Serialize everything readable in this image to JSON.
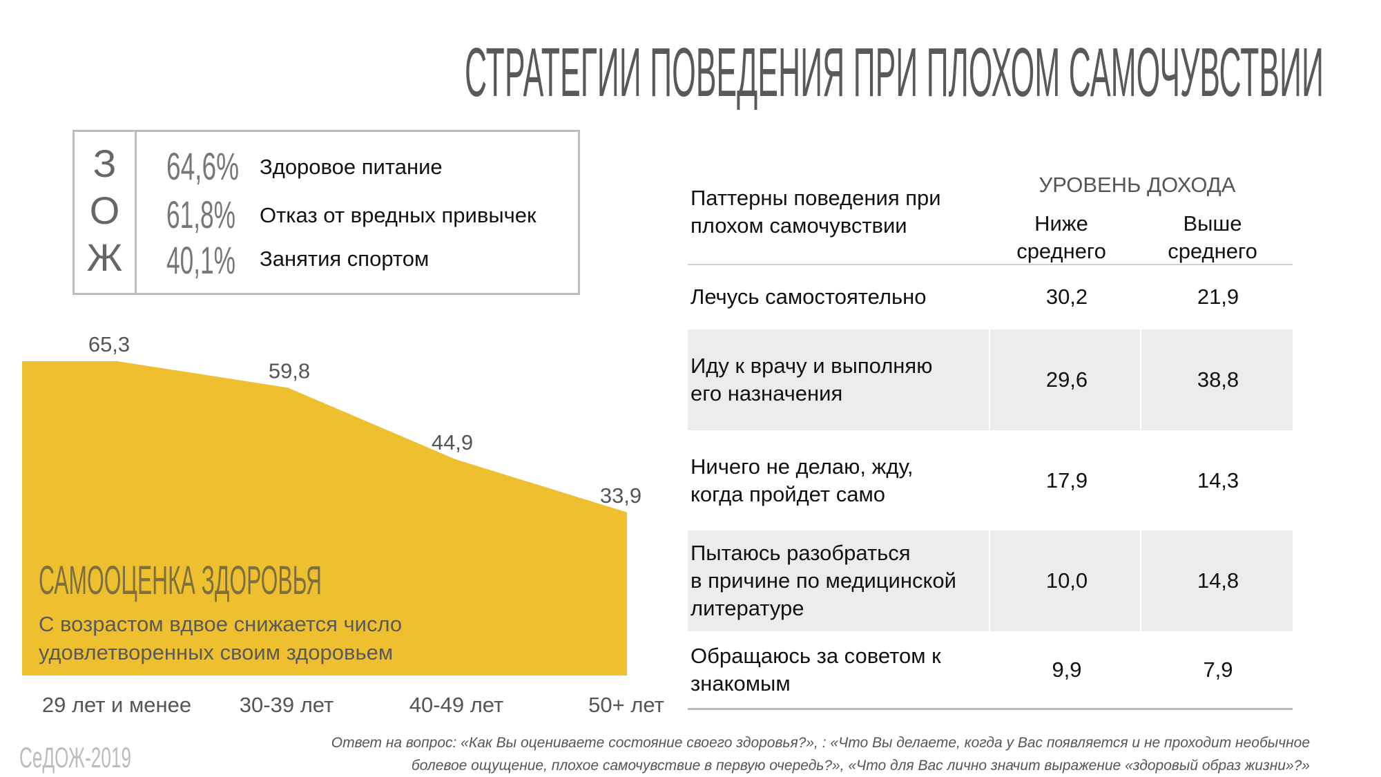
{
  "title": "СТРАТЕГИИ ПОВЕДЕНИЯ ПРИ ПЛОХОМ САМОЧУВСТВИИ",
  "zoj": {
    "letters": [
      "З",
      "О",
      "Ж"
    ],
    "items": [
      {
        "percent": "64,6%",
        "label": "Здоровое питание"
      },
      {
        "percent": "61,8%",
        "label": "Отказ от вредных привычек"
      },
      {
        "percent": "40,1%",
        "label": "Занятия спортом"
      }
    ]
  },
  "chart_data": {
    "type": "area",
    "title": "САМООЦЕНКА ЗДОРОВЬЯ",
    "subtitle": [
      "С возрастом вдвое снижается число",
      "удовлетворенных своим здоровьем"
    ],
    "categories": [
      "29 лет и менее",
      "30-39 лет",
      "40-49 лет",
      "50+ лет"
    ],
    "values": [
      65.3,
      59.8,
      44.9,
      33.9
    ],
    "value_labels": [
      "65,3",
      "59,8",
      "44,9",
      "33,9"
    ],
    "ylim": [
      0,
      65.3
    ],
    "grid": false,
    "color": "#EEBF2E"
  },
  "table": {
    "header_col1": [
      "Паттерны поведения при",
      "плохом самочувствии"
    ],
    "group_header": "УРОВЕНЬ ДОХОДА",
    "col2": [
      "Ниже",
      "среднего"
    ],
    "col3": [
      "Выше",
      "среднего"
    ],
    "rows": [
      {
        "label": [
          "Лечусь самостоятельно"
        ],
        "below": "30,2",
        "above": "21,9"
      },
      {
        "label": [
          "Иду к врачу и выполняю",
          "его назначения"
        ],
        "below": "29,6",
        "above": "38,8"
      },
      {
        "label": [
          "Ничего не делаю, жду,",
          "когда пройдет само"
        ],
        "below": "17,9",
        "above": "14,3"
      },
      {
        "label": [
          "Пытаюсь разобраться",
          "в причине по медицинской",
          "литературе"
        ],
        "below": "10,0",
        "above": "14,8"
      },
      {
        "label": [
          "Обращаюсь за советом к",
          "знакомым"
        ],
        "below": "9,9",
        "above": "7,9"
      }
    ]
  },
  "footer": {
    "logo": "СеДОЖ-2019",
    "note": [
      "Ответ на вопрос: «Как Вы оцениваете состояние своего здоровья?», : «Что Вы делаете, когда у Вас появляется и не проходит необычное",
      "болевое ощущение, плохое самочувствие в первую очередь?», «Что для Вас лично значит выражение «здоровый образ жизни»?»"
    ]
  }
}
